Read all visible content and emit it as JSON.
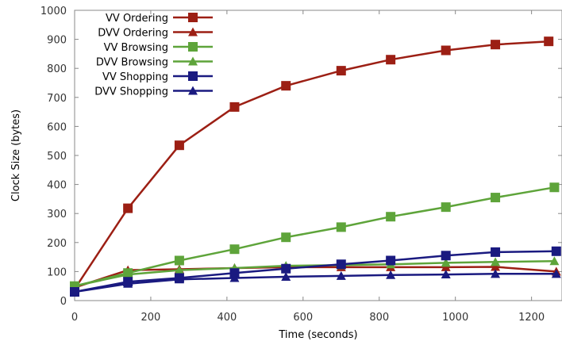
{
  "chart_data": {
    "type": "line",
    "title": "",
    "xlabel": "Time (seconds)",
    "ylabel": "Clock Size (bytes)",
    "xlim": [
      0,
      1280
    ],
    "ylim": [
      0,
      1000
    ],
    "xticks": [
      0,
      200,
      400,
      600,
      800,
      1000,
      1200
    ],
    "yticks": [
      0,
      100,
      200,
      300,
      400,
      500,
      600,
      700,
      800,
      900,
      1000
    ],
    "grid": false,
    "legend_position": "top-left",
    "series": [
      {
        "name": "VV Ordering",
        "color": "#9c1f14",
        "marker": "square",
        "x": [
          0,
          140,
          275,
          420,
          555,
          700,
          830,
          975,
          1105,
          1245
        ],
        "y": [
          40,
          318,
          535,
          667,
          740,
          792,
          830,
          862,
          882,
          893
        ]
      },
      {
        "name": "DVV Ordering",
        "color": "#9c1f14",
        "marker": "triangle",
        "x": [
          0,
          140,
          275,
          420,
          555,
          700,
          830,
          975,
          1105,
          1265
        ],
        "y": [
          45,
          105,
          108,
          112,
          115,
          115,
          115,
          115,
          116,
          100
        ]
      },
      {
        "name": "VV Browsing",
        "color": "#5ea43a",
        "marker": "square",
        "x": [
          0,
          140,
          275,
          420,
          555,
          700,
          830,
          975,
          1105,
          1260
        ],
        "y": [
          50,
          95,
          138,
          177,
          218,
          253,
          289,
          322,
          355,
          390
        ]
      },
      {
        "name": "DVV Browsing",
        "color": "#5ea43a",
        "marker": "triangle",
        "x": [
          0,
          140,
          275,
          420,
          555,
          700,
          830,
          975,
          1105,
          1260
        ],
        "y": [
          50,
          90,
          105,
          112,
          120,
          122,
          125,
          130,
          133,
          136
        ]
      },
      {
        "name": "VV Shopping",
        "color": "#1a1a80",
        "marker": "square",
        "x": [
          0,
          140,
          275,
          420,
          555,
          700,
          830,
          975,
          1105,
          1265
        ],
        "y": [
          30,
          65,
          78,
          95,
          110,
          125,
          138,
          155,
          167,
          170
        ]
      },
      {
        "name": "DVV Shopping",
        "color": "#1a1a80",
        "marker": "triangle",
        "x": [
          0,
          140,
          275,
          420,
          555,
          700,
          830,
          975,
          1105,
          1265
        ],
        "y": [
          30,
          58,
          73,
          78,
          82,
          85,
          88,
          90,
          92,
          92
        ]
      }
    ]
  }
}
